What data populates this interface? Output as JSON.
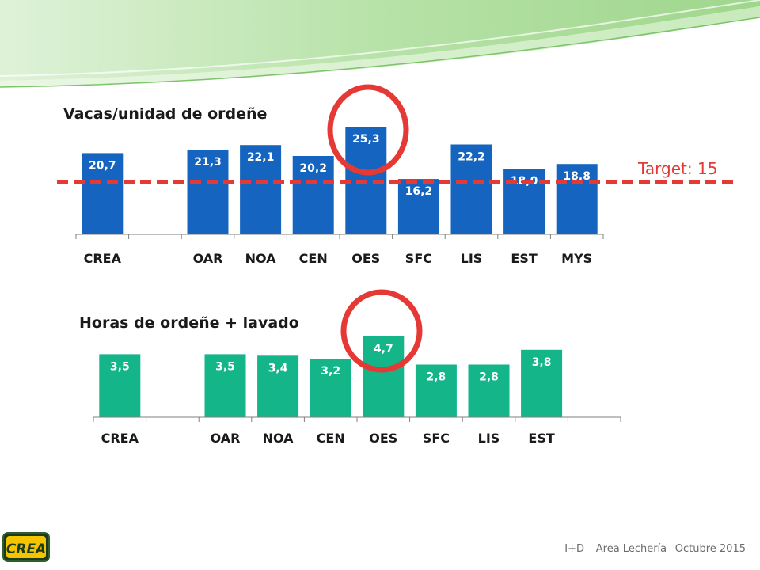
{
  "slide": {
    "footer": "I+D – Area Lechería– Octubre 2015",
    "logo_text": "CREA",
    "target_label": "Target: 15"
  },
  "colors": {
    "bar_top": "#1565c0",
    "bar_bottom": "#13b589",
    "target": "#e53935",
    "highlight": "#e53935"
  },
  "chart_data": [
    {
      "type": "bar",
      "title": "Vacas/unidad de ordeñe",
      "categories": [
        "CREA",
        "",
        "OAR",
        "NOA",
        "CEN",
        "OES",
        "SFC",
        "LIS",
        "EST",
        "MYS"
      ],
      "values": [
        20.7,
        null,
        21.3,
        22.1,
        20.2,
        25.3,
        16.2,
        22.2,
        18.0,
        18.8
      ],
      "labels": [
        "20,7",
        "",
        "21,3",
        "22,1",
        "20,2",
        "25,3",
        "16,2",
        "22,2",
        "18,0",
        "18,8"
      ],
      "target": 15,
      "highlight": "OES",
      "ylim": [
        15,
        25.3
      ]
    },
    {
      "type": "bar",
      "title": "Horas de ordeñe + lavado",
      "categories": [
        "CREA",
        "",
        "OAR",
        "NOA",
        "CEN",
        "OES",
        "SFC",
        "LIS",
        "EST",
        ""
      ],
      "values": [
        3.5,
        null,
        3.5,
        3.4,
        3.2,
        4.7,
        2.8,
        2.8,
        3.8,
        null
      ],
      "labels": [
        "3,5",
        "",
        "3,5",
        "3,4",
        "3,2",
        "4,7",
        "2,8",
        "2,8",
        "3,8",
        ""
      ],
      "highlight": "OES",
      "ylim": [
        1.7,
        4.7
      ]
    }
  ]
}
